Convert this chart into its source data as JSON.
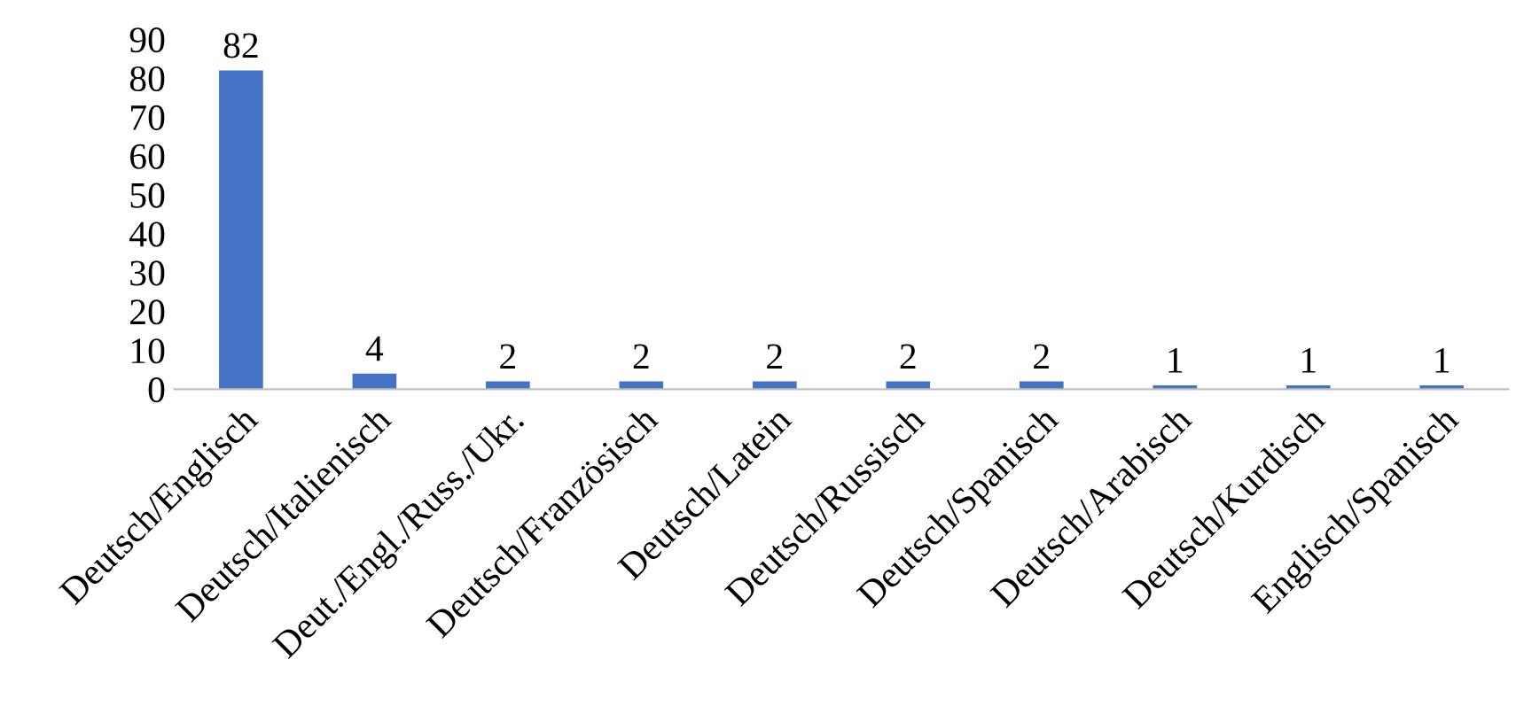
{
  "chart_data": {
    "type": "bar",
    "categories": [
      "Deutsch/Englisch",
      "Deutsch/Italienisch",
      "Deut./Engl./Russ./Ukr.",
      "Deutsch/Französisch",
      "Deutsch/Latein",
      "Deutsch/Russisch",
      "Deutsch/Spanisch",
      "Deutsch/Arabisch",
      "Deutsch/Kurdisch",
      "Englisch/Spanisch"
    ],
    "values": [
      82,
      4,
      2,
      2,
      2,
      2,
      2,
      1,
      1,
      1
    ],
    "color": "#4472c4",
    "ylim": [
      0,
      90
    ],
    "yticks": [
      0,
      10,
      20,
      30,
      40,
      50,
      60,
      70,
      80,
      90
    ],
    "data_labels": true,
    "grid": false
  }
}
